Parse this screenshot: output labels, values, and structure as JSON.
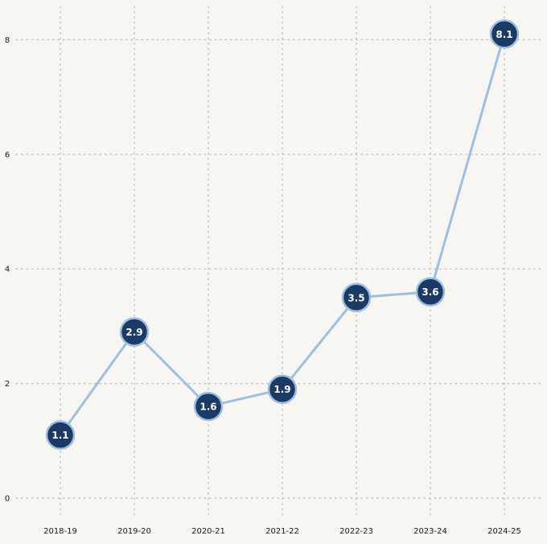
{
  "chart_data": {
    "type": "line",
    "title": "",
    "xlabel": "",
    "ylabel": "",
    "categories": [
      "2018-19",
      "2019-20",
      "2020-21",
      "2021-22",
      "2022-23",
      "2023-24",
      "2024-25"
    ],
    "values": [
      1.1,
      2.9,
      1.6,
      1.9,
      3.5,
      3.6,
      8.1
    ],
    "data_labels": [
      "1.1",
      "2.9",
      "1.6",
      "1.9",
      "3.5",
      "3.6",
      "8.1"
    ],
    "ylim": [
      0,
      8.4
    ],
    "yticks": [
      0,
      2,
      4,
      6,
      8
    ],
    "ytick_labels": [
      "0",
      "2",
      "4",
      "6",
      "8"
    ],
    "grid": true,
    "legend": "none",
    "colors": {
      "background": "#f7f6f2",
      "line": "#9dbfe0",
      "marker_fill": "#1c3a66",
      "marker_stroke": "#9dbfe0",
      "grid": "#b9b9b4",
      "text": "#1a1a1a"
    }
  }
}
